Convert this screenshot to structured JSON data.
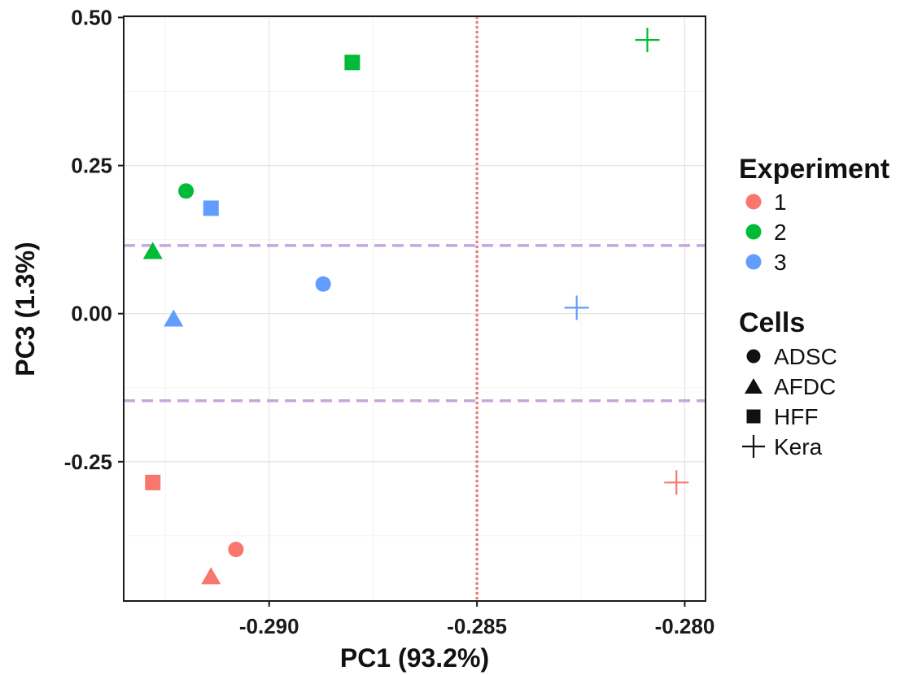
{
  "chart_data": {
    "type": "scatter",
    "xlabel": "PC1 (93.2%)",
    "ylabel": "PC3 (1.3%)",
    "xlim": [
      -0.2935,
      -0.2795
    ],
    "ylim": [
      -0.485,
      0.502
    ],
    "x_ticks": [
      {
        "value": -0.29,
        "label": "-0.290"
      },
      {
        "value": -0.285,
        "label": "-0.285"
      },
      {
        "value": -0.28,
        "label": "-0.280"
      }
    ],
    "y_ticks": [
      {
        "value": 0.5,
        "label": "0.50"
      },
      {
        "value": 0.25,
        "label": "0.25"
      },
      {
        "value": 0.0,
        "label": "0.00"
      },
      {
        "value": -0.25,
        "label": "-0.25"
      }
    ],
    "grid": true,
    "reference_lines": [
      {
        "orientation": "vertical",
        "value": -0.285,
        "color": "#f08080",
        "style": "dotted"
      },
      {
        "orientation": "horizontal",
        "value": 0.115,
        "color": "#c7a6dc",
        "style": "dashed"
      },
      {
        "orientation": "horizontal",
        "value": -0.147,
        "color": "#c7a6dc",
        "style": "dashed"
      }
    ],
    "color_legend": {
      "title": "Experiment",
      "items": [
        {
          "label": "1",
          "color": "#f8766d"
        },
        {
          "label": "2",
          "color": "#00ba38"
        },
        {
          "label": "3",
          "color": "#619cff"
        }
      ]
    },
    "shape_legend": {
      "title": "Cells",
      "items": [
        {
          "label": "ADSC",
          "shape": "circle"
        },
        {
          "label": "AFDC",
          "shape": "triangle"
        },
        {
          "label": "HFF",
          "shape": "square"
        },
        {
          "label": "Kera",
          "shape": "plus"
        }
      ]
    },
    "legend_position": "right",
    "points": [
      {
        "x": -0.2908,
        "y": -0.398,
        "experiment": "1",
        "cell": "ADSC"
      },
      {
        "x": -0.2914,
        "y": -0.443,
        "experiment": "1",
        "cell": "AFDC"
      },
      {
        "x": -0.2928,
        "y": -0.285,
        "experiment": "1",
        "cell": "HFF"
      },
      {
        "x": -0.2802,
        "y": -0.285,
        "experiment": "1",
        "cell": "Kera"
      },
      {
        "x": -0.292,
        "y": 0.207,
        "experiment": "2",
        "cell": "ADSC"
      },
      {
        "x": -0.2928,
        "y": 0.106,
        "experiment": "2",
        "cell": "AFDC"
      },
      {
        "x": -0.288,
        "y": 0.424,
        "experiment": "2",
        "cell": "HFF"
      },
      {
        "x": -0.2809,
        "y": 0.462,
        "experiment": "2",
        "cell": "Kera"
      },
      {
        "x": -0.2887,
        "y": 0.05,
        "experiment": "3",
        "cell": "ADSC"
      },
      {
        "x": -0.2923,
        "y": -0.008,
        "experiment": "3",
        "cell": "AFDC"
      },
      {
        "x": -0.2914,
        "y": 0.178,
        "experiment": "3",
        "cell": "HFF"
      },
      {
        "x": -0.2826,
        "y": 0.01,
        "experiment": "3",
        "cell": "Kera"
      }
    ]
  }
}
